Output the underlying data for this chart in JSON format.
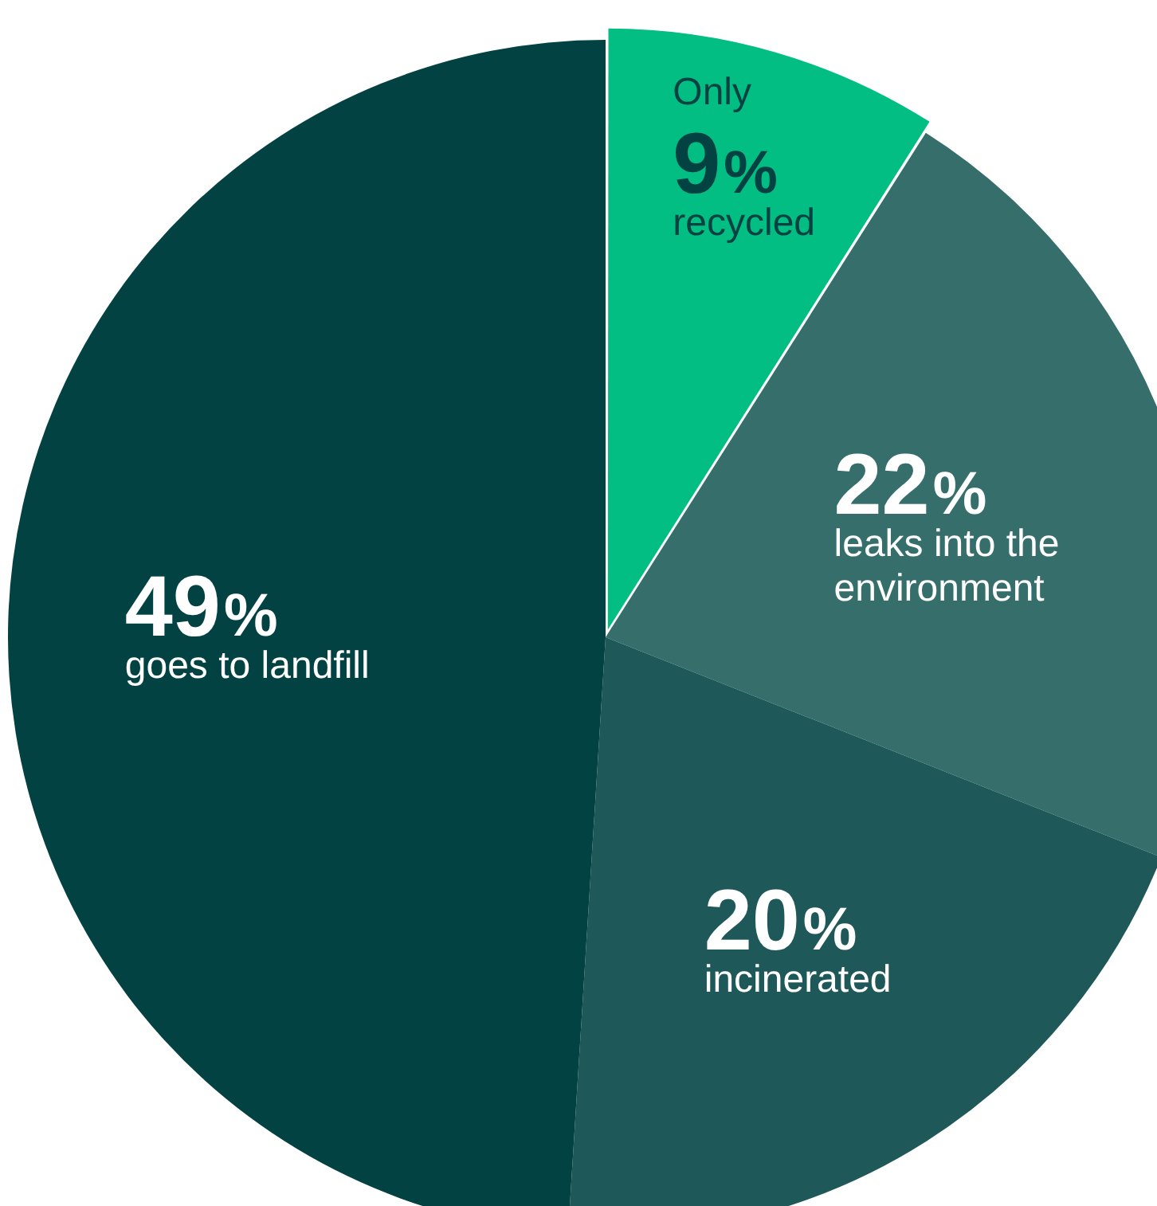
{
  "chart_data": {
    "type": "pie",
    "categories": [
      "recycled",
      "leaks into the environment",
      "incinerated",
      "goes to landfill"
    ],
    "values": [
      9,
      22,
      20,
      49
    ],
    "colors": [
      "#02be82",
      "#356e6b",
      "#1e5858",
      "#034242"
    ],
    "value_labels": [
      "9%",
      "22%",
      "20%",
      "49%"
    ],
    "annotations": [
      {
        "text": "Only",
        "x": "recycled"
      }
    ],
    "legend": false
  }
}
